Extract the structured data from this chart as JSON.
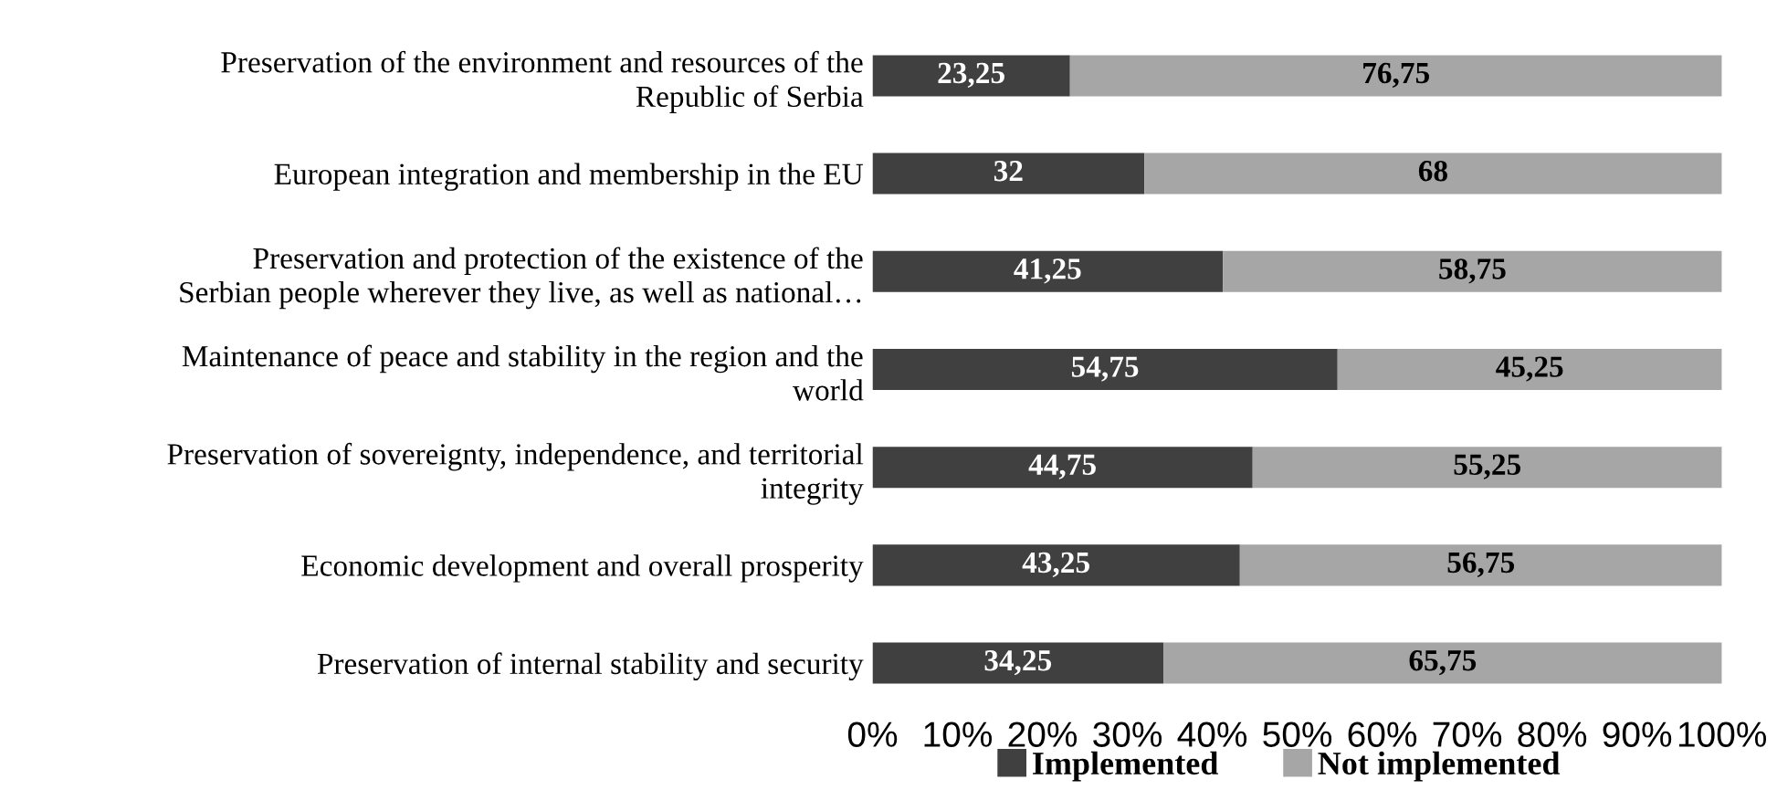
{
  "chart_data": {
    "type": "bar",
    "orientation": "horizontal",
    "stacked": true,
    "categories": [
      "Preservation of the environment and resources of the\nRepublic of Serbia",
      "European integration and membership in the EU",
      "Preservation and protection of the existence of the\nSerbian people wherever they live, as well as national…",
      "Maintenance of peace and stability in the region and the\nworld",
      "Preservation of sovereignty, independence, and territorial\nintegrity",
      "Economic development and overall prosperity",
      "Preservation of internal stability and security"
    ],
    "series": [
      {
        "name": "Implemented",
        "color": "#404040",
        "values": [
          23.25,
          32,
          41.25,
          54.75,
          44.75,
          43.25,
          34.25
        ],
        "value_labels": [
          "23,25",
          "32",
          "41,25",
          "54,75",
          "44,75",
          "43,25",
          "34,25"
        ]
      },
      {
        "name": "Not implemented",
        "color": "#a6a6a6",
        "values": [
          76.75,
          68,
          58.75,
          45.25,
          55.25,
          56.75,
          65.75
        ],
        "value_labels": [
          "76,75",
          "68",
          "58,75",
          "45,25",
          "55,25",
          "56,75",
          "65,75"
        ]
      }
    ],
    "xlim": [
      0,
      100
    ],
    "xticks": [
      {
        "value": 0,
        "label": "0%"
      },
      {
        "value": 10,
        "label": "10%"
      },
      {
        "value": 20,
        "label": "20%"
      },
      {
        "value": 30,
        "label": "30%"
      },
      {
        "value": 40,
        "label": "40%"
      },
      {
        "value": 50,
        "label": "50%"
      },
      {
        "value": 60,
        "label": "60%"
      },
      {
        "value": 70,
        "label": "70%"
      },
      {
        "value": 80,
        "label": "80%"
      },
      {
        "value": 90,
        "label": "90%"
      },
      {
        "value": 100,
        "label": "100%"
      }
    ],
    "grid": false,
    "legend": "bottom"
  }
}
